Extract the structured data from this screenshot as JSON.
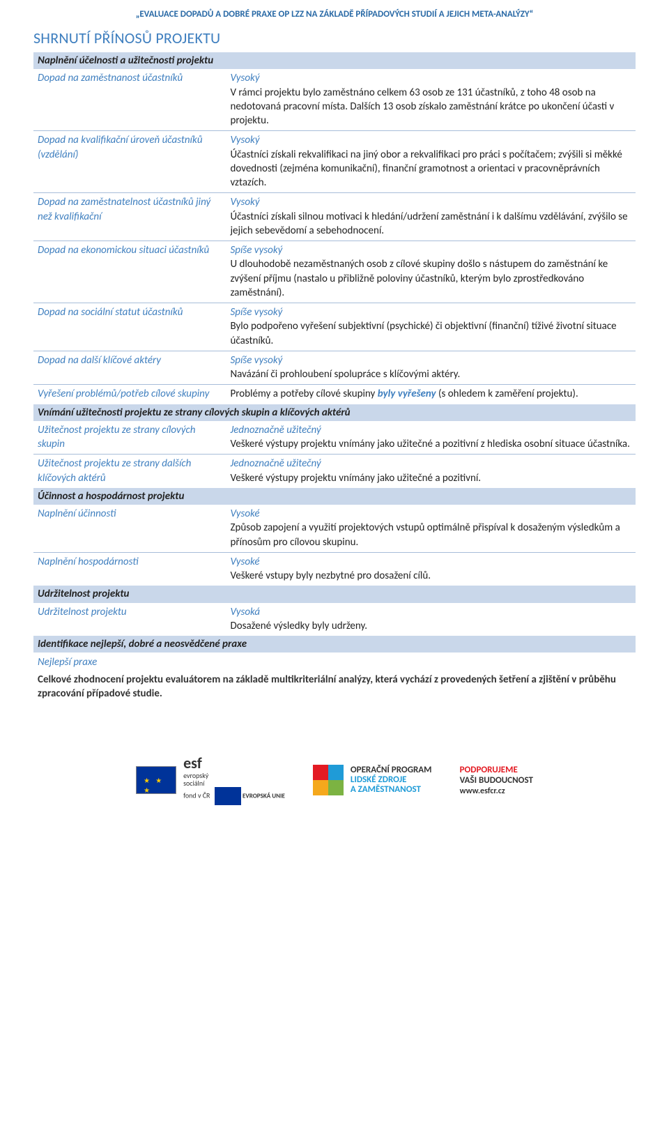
{
  "colors": {
    "accent_blue": "#3f7fbf",
    "bar_bg": "#c9d7ea",
    "row_border": "#a7bdd9",
    "header_blue": "#2a6aa6",
    "text": "#222",
    "eu_blue": "#003399",
    "eu_gold": "#ffcc00",
    "red": "#e31b23",
    "cyan": "#1f9bd7",
    "orange": "#f5a81c",
    "green": "#7cb342"
  },
  "doc_header": "„EVALUACE DOPADŮ A DOBRÉ PRAXE OP LZZ NA ZÁKLADĚ PŘÍPADOVÝCH STUDIÍ A JEJICH META-ANALÝZY“",
  "page_title": "SHRNUTÍ PŘÍNOSŮ PROJEKTU",
  "sections": {
    "s1": {
      "title": "Naplnění účelnosti a užitečnosti projektu",
      "rows": {
        "r1": {
          "label": "Dopad na zaměstnanost účastníků",
          "rating": "Vysoký",
          "desc": "V rámci projektu bylo zaměstnáno celkem 63 osob ze 131 účastníků, z toho 48 osob na nedotovaná pracovní místa. Dalších 13 osob získalo zaměstnání krátce po ukončení účasti v projektu."
        },
        "r2": {
          "label": "Dopad na kvalifikační úroveň účastníků (vzdělání)",
          "rating": "Vysoký",
          "desc": "Účastníci získali rekvalifikaci na jiný obor a rekvalifikaci pro práci s počítačem; zvýšili si měkké dovednosti (zejména komunikační), finanční gramotnost a orientaci v pracovněprávních vztazích."
        },
        "r3": {
          "label": "Dopad na zaměstnatelnost účastníků jiný než kvalifikační",
          "rating": "Vysoký",
          "desc": "Účastníci získali silnou motivaci k hledání/udržení zaměstnání i k dalšímu vzdělávání, zvýšilo se jejich sebevědomí a sebehodnocení."
        },
        "r4": {
          "label": "Dopad na ekonomickou situaci účastníků",
          "rating": "Spíše vysoký",
          "desc": "U dlouhodobě nezaměstnaných osob z cílové skupiny došlo s nástupem do zaměstnání ke zvýšení příjmu (nastalo u přibližně poloviny účastníků, kterým bylo zprostředkováno zaměstnání)."
        },
        "r5": {
          "label": "Dopad na sociální statut účastníků",
          "rating": "Spíše vysoký",
          "desc": "Bylo podpořeno vyřešení subjektivní (psychické) či objektivní (finanční) tíživé životní situace účastníků."
        },
        "r6": {
          "label": "Dopad na další klíčové aktéry",
          "rating": "Spíše vysoký",
          "desc": "Navázání či prohloubení spolupráce s klíčovými aktéry."
        },
        "r7": {
          "label": "Vyřešení problémů/potřeb cílové skupiny",
          "desc_pre": "Problémy a potřeby cílové skupiny ",
          "desc_em": "byly vyřešeny",
          "desc_post": " (s ohledem k zaměření projektu)."
        }
      }
    },
    "s2": {
      "title": "Vnímání užitečnosti projektu ze strany cílových skupin a klíčových aktérů",
      "rows": {
        "r1": {
          "label": "Užitečnost projektu ze strany cílových skupin",
          "rating": "Jednoznačně užitečný",
          "desc": "Veškeré výstupy projektu vnímány jako užitečné a pozitivní z hlediska osobní situace účastníka."
        },
        "r2": {
          "label": "Užitečnost projektu ze strany dalších klíčových aktérů",
          "rating": "Jednoznačně užitečný",
          "desc": "Veškeré výstupy projektu vnímány jako užitečné a pozitivní."
        }
      }
    },
    "s3": {
      "title": "Účinnost a hospodárnost projektu",
      "rows": {
        "r1": {
          "label": "Naplnění účinnosti",
          "rating": "Vysoké",
          "desc": "Způsob zapojení a využití projektových vstupů optimálně přispíval k dosaženým výsledkům a přínosům pro cílovou skupinu."
        },
        "r2": {
          "label": "Naplnění hospodárnosti",
          "rating": "Vysoké",
          "desc": "Veškeré vstupy byly nezbytné pro dosažení cílů."
        }
      }
    },
    "s4": {
      "title": "Udržitelnost projektu",
      "rows": {
        "r1": {
          "label": "Udržitelnost projektu",
          "rating": "Vysoká",
          "desc": "Dosažené výsledky byly udrženy."
        }
      }
    },
    "s5": {
      "title": "Identifikace nejlepší, dobré a neosvědčené praxe",
      "best_practice_label": "Nejlepší praxe",
      "closing": "Celkové zhodnocení projektu evaluátorem na základě multikriteriální analýzy, která vychází z provedených šetření a zjištění v průběhu zpracování případové studie."
    }
  },
  "footer": {
    "esf_big": "esf",
    "esf_l1": "evropský",
    "esf_l2": "sociální",
    "esf_l3": "fond v ČR",
    "esf_eu": "EVROPSKÁ UNIE",
    "op_l1": "OPERAČNÍ PROGRAM",
    "op_l2": "LIDSKÉ ZDROJE",
    "op_l3": "A ZAMĚSTNANOST",
    "sup_l1": "PODPORUJEME",
    "sup_l2": "VAŠI BUDOUCNOST",
    "sup_l3": "www.esfcr.cz"
  }
}
